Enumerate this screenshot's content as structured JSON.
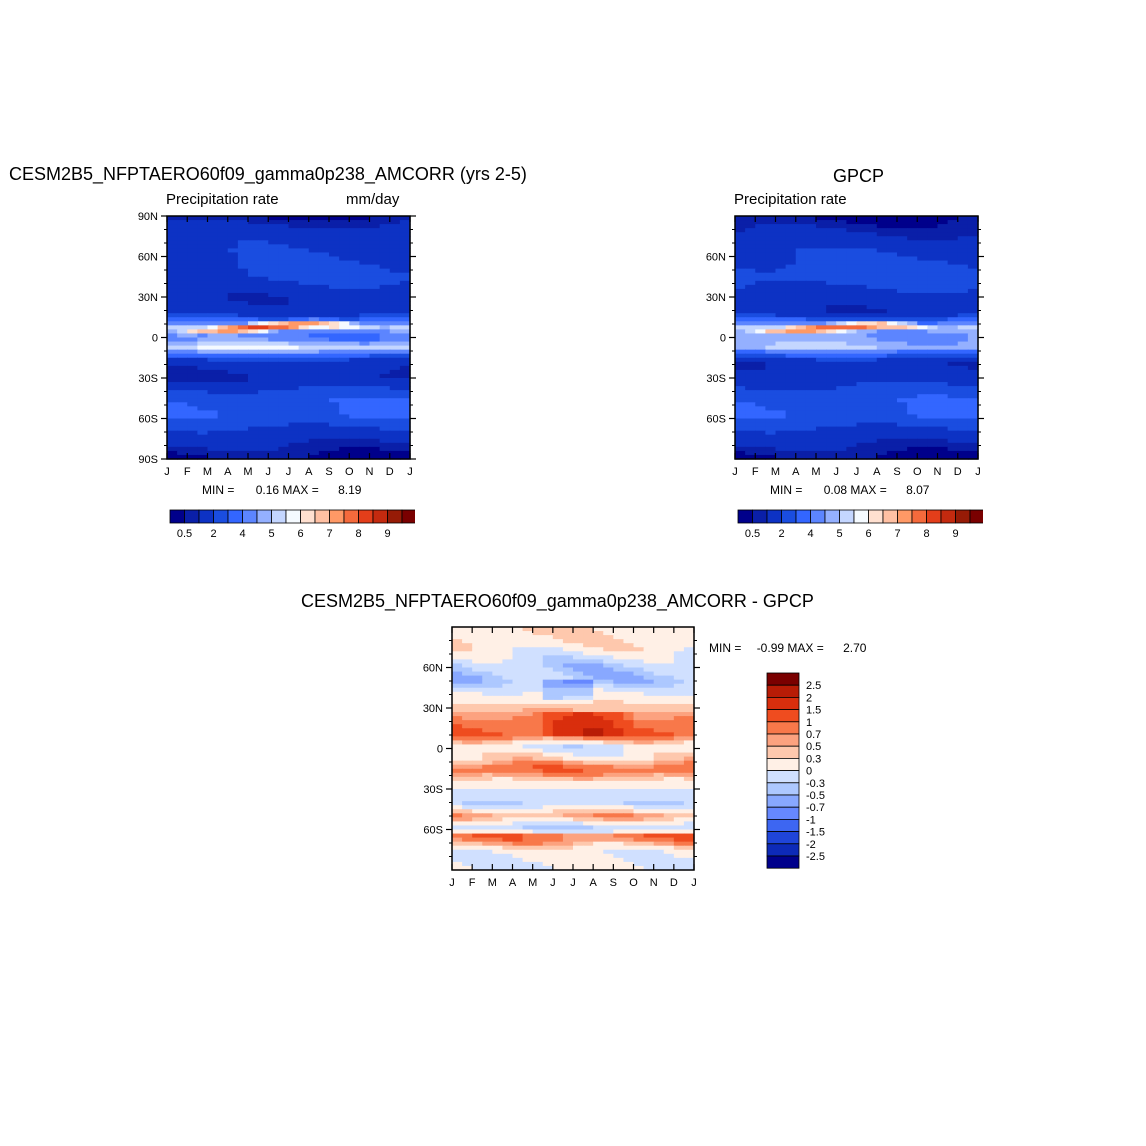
{
  "chart_data": [
    {
      "type": "heatmap",
      "id": "model",
      "title": "CESM2B5_NFPTAERO60f09_gamma0p238_AMCORR (yrs 2-5)",
      "left_label": "Precipitation rate",
      "right_label": "mm/day",
      "x_ticks": [
        "J",
        "F",
        "M",
        "A",
        "M",
        "J",
        "J",
        "A",
        "S",
        "O",
        "N",
        "D",
        "J"
      ],
      "y_ticks": [
        "90N",
        "60N",
        "30N",
        "0",
        "30S",
        "60S",
        "90S"
      ],
      "ylim": [
        -90,
        90
      ],
      "stats": {
        "min_label": "MIN =",
        "min": "0.16",
        "max_label": "MAX =",
        "max": "8.19"
      },
      "colorbar_colors": [
        "#00008b",
        "#0a1fa8",
        "#0d32c4",
        "#1a4de0",
        "#3366ff",
        "#5c85ff",
        "#94b0ff",
        "#c4d6ff",
        "#f5faff",
        "#ffe0d0",
        "#ffc0a3",
        "#ff9966",
        "#f56a3c",
        "#e33e1a",
        "#c42a0f",
        "#961b06",
        "#7a0000"
      ],
      "colorbar_labels": [
        "0.5",
        "2",
        "4",
        "5",
        "6",
        "7",
        "8",
        "9"
      ],
      "bands": [
        {
          "lat": 90,
          "value": 0.5
        },
        {
          "lat": 78,
          "value": 1.5
        },
        {
          "lat": 65,
          "value": 1.8
        },
        {
          "lat": 45,
          "value": 2.2
        },
        {
          "lat": 30,
          "value": 1.2
        },
        {
          "lat": 18,
          "value": 1.5
        },
        {
          "lat": 8,
          "value": 5.0
        },
        {
          "lat": 0,
          "value": 4.0
        },
        {
          "lat": -8,
          "value": 5.5
        },
        {
          "lat": -18,
          "value": 1.5
        },
        {
          "lat": -30,
          "value": 1.0
        },
        {
          "lat": -45,
          "value": 2.8
        },
        {
          "lat": -58,
          "value": 3.0
        },
        {
          "lat": -72,
          "value": 1.5
        },
        {
          "lat": -90,
          "value": 0.3
        }
      ],
      "itcz": {
        "peak": 8.19,
        "lat_start": 3,
        "lat_mid": 10,
        "lat_end": 6
      }
    },
    {
      "type": "heatmap",
      "id": "obs",
      "title": "GPCP",
      "left_label": "Precipitation rate",
      "right_label": "",
      "x_ticks": [
        "J",
        "F",
        "M",
        "A",
        "M",
        "J",
        "J",
        "A",
        "S",
        "O",
        "N",
        "D",
        "J"
      ],
      "y_ticks": [
        "60N",
        "30N",
        "0",
        "30S",
        "60S"
      ],
      "ylim": [
        -90,
        90
      ],
      "stats": {
        "min_label": "MIN =",
        "min": "0.08",
        "max_label": "MAX =",
        "max": "8.07"
      },
      "colorbar_colors": [
        "#00008b",
        "#0a1fa8",
        "#0d32c4",
        "#1a4de0",
        "#3366ff",
        "#5c85ff",
        "#94b0ff",
        "#c4d6ff",
        "#f5faff",
        "#ffe0d0",
        "#ffc0a3",
        "#ff9966",
        "#f56a3c",
        "#e33e1a",
        "#c42a0f",
        "#961b06",
        "#7a0000"
      ],
      "colorbar_labels": [
        "0.5",
        "2",
        "4",
        "5",
        "6",
        "7",
        "8",
        "9"
      ],
      "bands": [
        {
          "lat": 90,
          "value": 0.3
        },
        {
          "lat": 78,
          "value": 1.0
        },
        {
          "lat": 65,
          "value": 1.8
        },
        {
          "lat": 45,
          "value": 2.5
        },
        {
          "lat": 30,
          "value": 1.5
        },
        {
          "lat": 18,
          "value": 1.2
        },
        {
          "lat": 8,
          "value": 5.0
        },
        {
          "lat": 0,
          "value": 4.5
        },
        {
          "lat": -8,
          "value": 5.0
        },
        {
          "lat": -18,
          "value": 1.2
        },
        {
          "lat": -30,
          "value": 1.5
        },
        {
          "lat": -45,
          "value": 2.8
        },
        {
          "lat": -58,
          "value": 3.0
        },
        {
          "lat": -72,
          "value": 1.5
        },
        {
          "lat": -90,
          "value": 0.3
        }
      ],
      "itcz": {
        "peak": 8.07,
        "lat_start": 3,
        "lat_mid": 9,
        "lat_end": 5
      }
    },
    {
      "type": "heatmap",
      "id": "diff",
      "title": "CESM2B5_NFPTAERO60f09_gamma0p238_AMCORR - GPCP",
      "x_ticks": [
        "J",
        "F",
        "M",
        "A",
        "M",
        "J",
        "J",
        "A",
        "S",
        "O",
        "N",
        "D",
        "J"
      ],
      "y_ticks": [
        "60N",
        "30N",
        "0",
        "30S",
        "60S"
      ],
      "ylim": [
        -90,
        90
      ],
      "stats": {
        "min_label": "MIN =",
        "min": "-0.99",
        "max_label": "MAX =",
        "max": "2.70"
      },
      "colorbar_colors": [
        "#7a0000",
        "#b81c06",
        "#d92e0d",
        "#ef4c1f",
        "#f8784a",
        "#fca27f",
        "#fec8ad",
        "#fff0e6",
        "#d0e0ff",
        "#adc8ff",
        "#88a8ff",
        "#6688ff",
        "#3d66f2",
        "#1f45d9",
        "#0d2ab8",
        "#00008b"
      ],
      "colorbar_labels": [
        "2.5",
        "2",
        "1.5",
        "1",
        "0.7",
        "0.5",
        "0.3",
        "0",
        "-0.3",
        "-0.5",
        "-0.7",
        "-1",
        "-1.5",
        "-2",
        "-2.5"
      ],
      "bands": [
        {
          "lat": 90,
          "value": 0.3
        },
        {
          "lat": 75,
          "value": 0.2
        },
        {
          "lat": 62,
          "value": -0.3
        },
        {
          "lat": 50,
          "value": -0.4
        },
        {
          "lat": 40,
          "value": 0.1
        },
        {
          "lat": 30,
          "value": 0.4
        },
        {
          "lat": 22,
          "value": 0.8
        },
        {
          "lat": 10,
          "value": 1.1
        },
        {
          "lat": 2,
          "value": -0.1
        },
        {
          "lat": -8,
          "value": 0.3
        },
        {
          "lat": -15,
          "value": 1.0
        },
        {
          "lat": -25,
          "value": 0.2
        },
        {
          "lat": -40,
          "value": -0.3
        },
        {
          "lat": -50,
          "value": 0.6
        },
        {
          "lat": -60,
          "value": -0.4
        },
        {
          "lat": -65,
          "value": 1.0
        },
        {
          "lat": -75,
          "value": 0.1
        },
        {
          "lat": -88,
          "value": 0.0
        }
      ]
    }
  ]
}
